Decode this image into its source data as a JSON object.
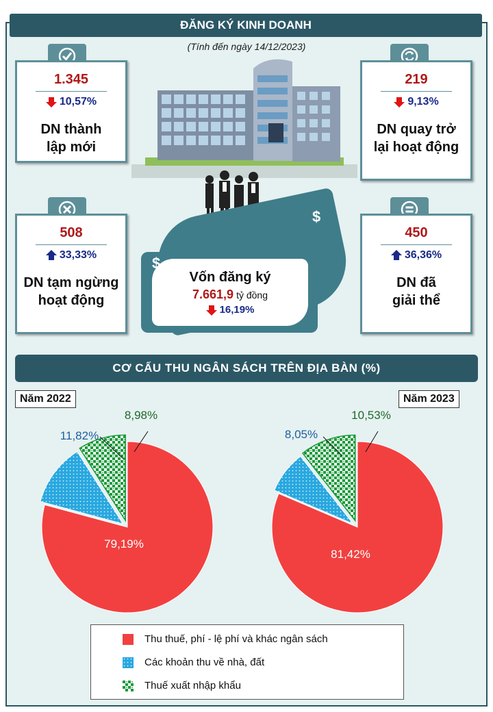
{
  "header": {
    "title": "ĐĂNG KÝ KINH DOANH",
    "subtitle": "(Tính đến ngày 14/12/2023)"
  },
  "cards": [
    {
      "value": "1.345",
      "change": "10,57%",
      "direction": "down",
      "label_line1": "DN  thành",
      "label_line2": "lập mới",
      "icon": "check-icon"
    },
    {
      "value": "219",
      "change": "9,13%",
      "direction": "down",
      "label_line1": "DN quay trở",
      "label_line2": "lại hoạt động",
      "icon": "refresh-icon"
    },
    {
      "value": "508",
      "change": "33,33%",
      "direction": "up",
      "label_line1": "DN tạm ngừng",
      "label_line2": "hoạt động",
      "icon": "x-circle-icon"
    },
    {
      "value": "450",
      "change": "36,36%",
      "direction": "up",
      "label_line1": "DN đã",
      "label_line2": "giải thể",
      "icon": "equal-icon"
    }
  ],
  "capital": {
    "title": "Vốn đăng ký",
    "value": "7.661,9",
    "unit": "tỷ đồng",
    "change": "16,19%",
    "direction": "down"
  },
  "section2": {
    "title": "CƠ CẤU THU NGÂN SÁCH TRÊN ĐỊA BÀN (%)"
  },
  "colors": {
    "tax": "#f24040",
    "land": "#29a8e0",
    "import": "#1d9a3c",
    "banner": "#2c5866",
    "up_arrow": "#1a2a88",
    "down_arrow": "#e01414"
  },
  "chart_data": [
    {
      "type": "pie",
      "title": "Năm 2022",
      "slices": [
        {
          "label": "Thu thuế, phí - lệ phí và khác ngân sách",
          "value": 79.19,
          "display": "79,19%"
        },
        {
          "label": "Các khoản thu về nhà, đất",
          "value": 11.82,
          "display": "11,82%"
        },
        {
          "label": "Thuế xuất nhập khẩu",
          "value": 8.98,
          "display": "8,98%"
        }
      ]
    },
    {
      "type": "pie",
      "title": "Năm 2023",
      "slices": [
        {
          "label": "Thu thuế, phí - lệ phí và khác ngân sách",
          "value": 81.42,
          "display": "81,42%"
        },
        {
          "label": "Các khoản thu về nhà, đất",
          "value": 8.05,
          "display": "8,05%"
        },
        {
          "label": "Thuế xuất nhập khẩu",
          "value": 10.53,
          "display": "10,53%"
        }
      ]
    }
  ],
  "legend": [
    "Thu thuế, phí - lệ phí và khác ngân sách",
    "Các khoản thu về nhà, đất",
    "Thuế xuất nhập khẩu"
  ]
}
